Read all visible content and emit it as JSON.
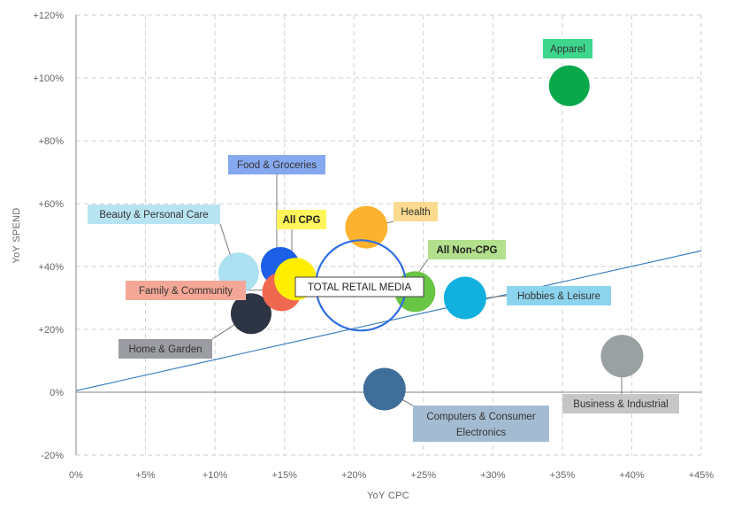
{
  "chart_data": {
    "type": "scatter",
    "subtype": "bubble",
    "xlabel": "YoY CPC",
    "ylabel": "YoY SPEND",
    "xlim": [
      0,
      45
    ],
    "ylim": [
      -20,
      120
    ],
    "x_ticks": [
      0,
      5,
      10,
      15,
      20,
      25,
      30,
      35,
      40,
      45
    ],
    "y_ticks": [
      -20,
      0,
      20,
      40,
      60,
      80,
      100,
      120
    ],
    "x_tick_labels": [
      "0%",
      "+5%",
      "+10%",
      "+15%",
      "+20%",
      "+25%",
      "+30%",
      "+35%",
      "+40%",
      "+45%"
    ],
    "y_tick_labels": [
      "-20%",
      "0%",
      "+20%",
      "+40%",
      "+60%",
      "+80%",
      "+100%",
      "+120%"
    ],
    "grid": true,
    "trendline": {
      "x": [
        0,
        45
      ],
      "y": [
        0.5,
        45
      ]
    },
    "points": [
      {
        "name": "Apparel",
        "x": 35.5,
        "y": 97.5,
        "color": "#0aa84a",
        "label_bg": "#3dd68c",
        "label_color": "#333333",
        "bold": false
      },
      {
        "name": "Food & Groceries",
        "x": 14.7,
        "y": 40,
        "color": "#1e5fe8",
        "label_bg": "#86a8ef",
        "label_color": "#333333",
        "bold": false
      },
      {
        "name": "Beauty & Personal Care",
        "x": 11.7,
        "y": 38,
        "color": "#a8dff0",
        "label_bg": "#b8e4f2",
        "label_color": "#333333",
        "bold": false
      },
      {
        "name": "Family & Community",
        "x": 14.8,
        "y": 32,
        "color": "#f06850",
        "label_bg": "#f4a796",
        "label_color": "#333333",
        "bold": false
      },
      {
        "name": "All CPG",
        "x": 15.8,
        "y": 36,
        "color": "#ffee00",
        "label_bg": "#fff45a",
        "label_color": "#222222",
        "bold": true
      },
      {
        "name": "Home & Garden",
        "x": 12.6,
        "y": 25,
        "color": "#2d3544",
        "label_bg": "#9a9ca2",
        "label_color": "#333333",
        "bold": false
      },
      {
        "name": "Health",
        "x": 20.9,
        "y": 52.5,
        "color": "#fdb22f",
        "label_bg": "#fbd98e",
        "label_color": "#333333",
        "bold": false
      },
      {
        "name": "All Non-CPG",
        "x": 24.4,
        "y": 32,
        "color": "#69c644",
        "label_bg": "#b2e08c",
        "label_color": "#222222",
        "bold": true
      },
      {
        "name": "Hobbies & Leisure",
        "x": 28,
        "y": 30,
        "color": "#12b0de",
        "label_bg": "#8cd4ee",
        "label_color": "#333333",
        "bold": false
      },
      {
        "name": "Business & Industrial",
        "x": 39.3,
        "y": 11.5,
        "color": "#9aa1a2",
        "label_bg": "#c4c6c8",
        "label_color": "#333333",
        "bold": false
      },
      {
        "name": "Computers & Consumer Electronics",
        "x": 22.2,
        "y": 1,
        "color": "#3e6e99",
        "label_bg": "#a4bcd2",
        "label_color": "#333333",
        "bold": false
      },
      {
        "name": "TOTAL RETAIL MEDIA",
        "x": 20.5,
        "y": 34,
        "color": "#2f6ee0",
        "label_bg": "#ffffff",
        "label_color": "#222222",
        "bold": false,
        "hollow": true
      }
    ]
  }
}
